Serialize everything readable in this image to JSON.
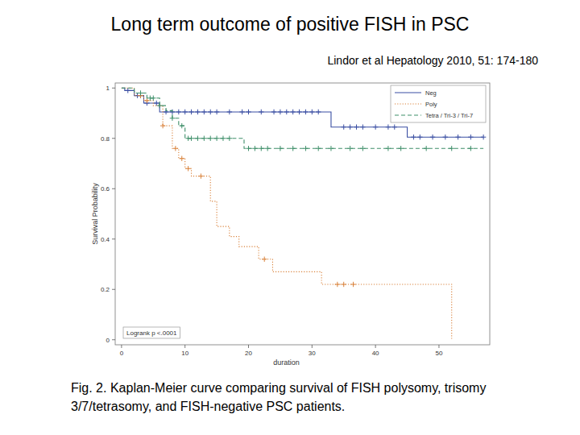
{
  "chart_data": {
    "type": "step",
    "title": "Long term outcome of positive FISH in PSC",
    "subtitle": "Lindor et al Hepatology 2010, 51: 174-180",
    "caption": "Fig. 2. Kaplan-Meier curve comparing survival of FISH polysomy, trisomy 3/7/tetrasomy, and FISH-negative PSC patients.",
    "x_label": "duration",
    "y_label": "Survival Probability",
    "annotations": [
      "Logrank p <.0001"
    ],
    "xlim": [
      -1,
      58
    ],
    "ylim": [
      -0.02,
      1.02
    ],
    "xticks": [
      0,
      10,
      20,
      30,
      40,
      50
    ],
    "yticks": [
      0,
      0.2,
      0.4,
      0.6,
      0.8,
      1
    ],
    "grid": false,
    "legend": "top-right",
    "series": [
      {
        "name": "Neg",
        "color": "#3b4fa3",
        "line_style": "solid",
        "marker": "plus",
        "x": [
          0,
          0.5,
          2,
          3.5,
          6,
          33,
          45,
          57
        ],
        "values": [
          1,
          0.99,
          0.97,
          0.94,
          0.905,
          0.845,
          0.805,
          0.805
        ],
        "censored": [
          1,
          2.5,
          3,
          4,
          5.5,
          7,
          8,
          9,
          10,
          11,
          12,
          13,
          14,
          15,
          17,
          19,
          20,
          22,
          24,
          25,
          26,
          27,
          28,
          29,
          30,
          31,
          35,
          36,
          37,
          38,
          40,
          42,
          43,
          46,
          47,
          49,
          51,
          53,
          55,
          57
        ]
      },
      {
        "name": "Poly",
        "color": "#d9823b",
        "line_style": "dotted",
        "marker": "plus",
        "x": [
          0,
          2,
          3.5,
          5,
          6.5,
          8,
          9,
          10,
          11,
          14,
          15,
          17,
          18.5,
          21.6,
          23.8,
          31.5,
          52
        ],
        "values": [
          1,
          0.97,
          0.95,
          0.93,
          0.85,
          0.76,
          0.72,
          0.68,
          0.65,
          0.55,
          0.45,
          0.41,
          0.37,
          0.32,
          0.27,
          0.22,
          0
        ],
        "censored": [
          3,
          4,
          6.5,
          8.5,
          9.5,
          10.5,
          12.5,
          22.5,
          34,
          35,
          36.5
        ]
      },
      {
        "name": "Tetra / Tri-3 / Tri-7",
        "color": "#3f8f6a",
        "line_style": "dashed",
        "marker": "plus",
        "x": [
          0,
          2,
          4,
          6,
          7,
          8,
          9,
          10,
          19.3,
          57
        ],
        "values": [
          1,
          0.98,
          0.96,
          0.93,
          0.91,
          0.88,
          0.85,
          0.8,
          0.76,
          0.76
        ],
        "censored": [
          3,
          4.5,
          5,
          6,
          8,
          9.5,
          10.5,
          11,
          12,
          13,
          14,
          15,
          16,
          17,
          20,
          21,
          22,
          23,
          25,
          27,
          29,
          31,
          33,
          36,
          38,
          42,
          44,
          48,
          52,
          55
        ]
      }
    ]
  }
}
